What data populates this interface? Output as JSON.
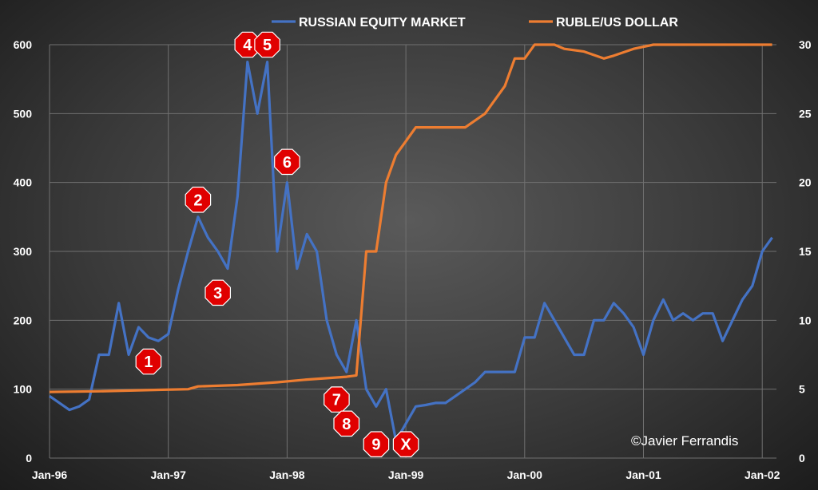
{
  "chart_data": {
    "type": "line",
    "title": "",
    "x_labels": [
      "Jan-96",
      "Jan-97",
      "Jan-98",
      "Jan-99",
      "Jan-00",
      "Jan-01",
      "Jan-02"
    ],
    "ylim_left": [
      0,
      600
    ],
    "yticks_left": [
      0,
      100,
      200,
      300,
      400,
      500,
      600
    ],
    "ylim_right": [
      0,
      30
    ],
    "yticks_right": [
      0,
      5,
      10,
      15,
      20,
      25,
      30
    ],
    "grid": true,
    "legend_position": "top",
    "series": [
      {
        "name": "RUSSIAN EQUITY MARKET",
        "axis": "left",
        "color": "#4472C4",
        "points": [
          [
            "1996-01",
            90
          ],
          [
            "1996-02",
            80
          ],
          [
            "1996-03",
            70
          ],
          [
            "1996-04",
            75
          ],
          [
            "1996-05",
            85
          ],
          [
            "1996-06",
            150
          ],
          [
            "1996-07",
            150
          ],
          [
            "1996-08",
            225
          ],
          [
            "1996-09",
            150
          ],
          [
            "1996-10",
            190
          ],
          [
            "1996-11",
            175
          ],
          [
            "1996-12",
            170
          ],
          [
            "1997-01",
            180
          ],
          [
            "1997-02",
            245
          ],
          [
            "1997-03",
            300
          ],
          [
            "1997-04",
            350
          ],
          [
            "1997-05",
            320
          ],
          [
            "1997-06",
            300
          ],
          [
            "1997-07",
            275
          ],
          [
            "1997-08",
            380
          ],
          [
            "1997-09",
            575
          ],
          [
            "1997-10",
            500
          ],
          [
            "1997-11",
            575
          ],
          [
            "1997-12",
            300
          ],
          [
            "1998-01",
            400
          ],
          [
            "1998-02",
            275
          ],
          [
            "1998-03",
            325
          ],
          [
            "1998-04",
            300
          ],
          [
            "1998-05",
            200
          ],
          [
            "1998-06",
            150
          ],
          [
            "1998-07",
            125
          ],
          [
            "1998-08",
            200
          ],
          [
            "1998-09",
            100
          ],
          [
            "1998-10",
            75
          ],
          [
            "1998-11",
            100
          ],
          [
            "1998-12",
            25
          ],
          [
            "1999-01",
            50
          ],
          [
            "1999-02",
            75
          ],
          [
            "1999-03",
            77
          ],
          [
            "1999-04",
            80
          ],
          [
            "1999-05",
            80
          ],
          [
            "1999-06",
            90
          ],
          [
            "1999-07",
            100
          ],
          [
            "1999-08",
            110
          ],
          [
            "1999-09",
            125
          ],
          [
            "1999-10",
            125
          ],
          [
            "1999-11",
            125
          ],
          [
            "1999-12",
            125
          ],
          [
            "2000-01",
            175
          ],
          [
            "2000-02",
            175
          ],
          [
            "2000-03",
            225
          ],
          [
            "2000-04",
            200
          ],
          [
            "2000-05",
            175
          ],
          [
            "2000-06",
            150
          ],
          [
            "2000-07",
            150
          ],
          [
            "2000-08",
            200
          ],
          [
            "2000-09",
            200
          ],
          [
            "2000-10",
            225
          ],
          [
            "2000-11",
            210
          ],
          [
            "2000-12",
            190
          ],
          [
            "2001-01",
            150
          ],
          [
            "2001-02",
            200
          ],
          [
            "2001-03",
            230
          ],
          [
            "2001-04",
            200
          ],
          [
            "2001-05",
            210
          ],
          [
            "2001-06",
            200
          ],
          [
            "2001-07",
            210
          ],
          [
            "2001-08",
            210
          ],
          [
            "2001-09",
            170
          ],
          [
            "2001-10",
            200
          ],
          [
            "2001-11",
            230
          ],
          [
            "2001-12",
            250
          ],
          [
            "2002-01",
            300
          ],
          [
            "2002-02",
            320
          ]
        ]
      },
      {
        "name": "RUBLE/US DOLLAR",
        "axis": "right",
        "color": "#ED7D31",
        "points": [
          [
            "1996-01",
            4.8
          ],
          [
            "1996-06",
            4.85
          ],
          [
            "1996-12",
            4.95
          ],
          [
            "1997-03",
            5.0
          ],
          [
            "1997-04",
            5.2
          ],
          [
            "1997-08",
            5.3
          ],
          [
            "1997-12",
            5.5
          ],
          [
            "1998-03",
            5.7
          ],
          [
            "1998-07",
            5.9
          ],
          [
            "1998-08",
            6.0
          ],
          [
            "1998-09",
            15
          ],
          [
            "1998-10",
            15
          ],
          [
            "1998-11",
            20
          ],
          [
            "1998-12",
            22
          ],
          [
            "1999-01",
            23
          ],
          [
            "1999-02",
            24
          ],
          [
            "1999-03",
            24
          ],
          [
            "1999-06",
            24
          ],
          [
            "1999-07",
            24
          ],
          [
            "1999-09",
            25
          ],
          [
            "1999-11",
            27
          ],
          [
            "1999-12",
            29
          ],
          [
            "2000-01",
            29
          ],
          [
            "2000-02",
            30
          ],
          [
            "2000-04",
            30
          ],
          [
            "2000-05",
            29.7
          ],
          [
            "2000-07",
            29.5
          ],
          [
            "2000-09",
            29.0
          ],
          [
            "2000-10",
            29.2
          ],
          [
            "2000-12",
            29.7
          ],
          [
            "2001-02",
            30
          ],
          [
            "2001-06",
            30
          ],
          [
            "2002-02",
            30
          ]
        ]
      }
    ],
    "annotations": [
      {
        "label": "1",
        "date": "1996-11",
        "y": 140
      },
      {
        "label": "2",
        "date": "1997-04",
        "y": 375
      },
      {
        "label": "3",
        "date": "1997-06",
        "y": 240
      },
      {
        "label": "4",
        "date": "1997-09",
        "y": 600
      },
      {
        "label": "5",
        "date": "1997-11",
        "y": 600
      },
      {
        "label": "6",
        "date": "1998-01",
        "y": 430
      },
      {
        "label": "7",
        "date": "1998-06",
        "y": 85
      },
      {
        "label": "8",
        "date": "1998-07",
        "y": 50
      },
      {
        "label": "9",
        "date": "1998-10",
        "y": 20
      },
      {
        "label": "X",
        "date": "1999-01",
        "y": 20
      }
    ]
  },
  "credit": "©Javier Ferrandis"
}
